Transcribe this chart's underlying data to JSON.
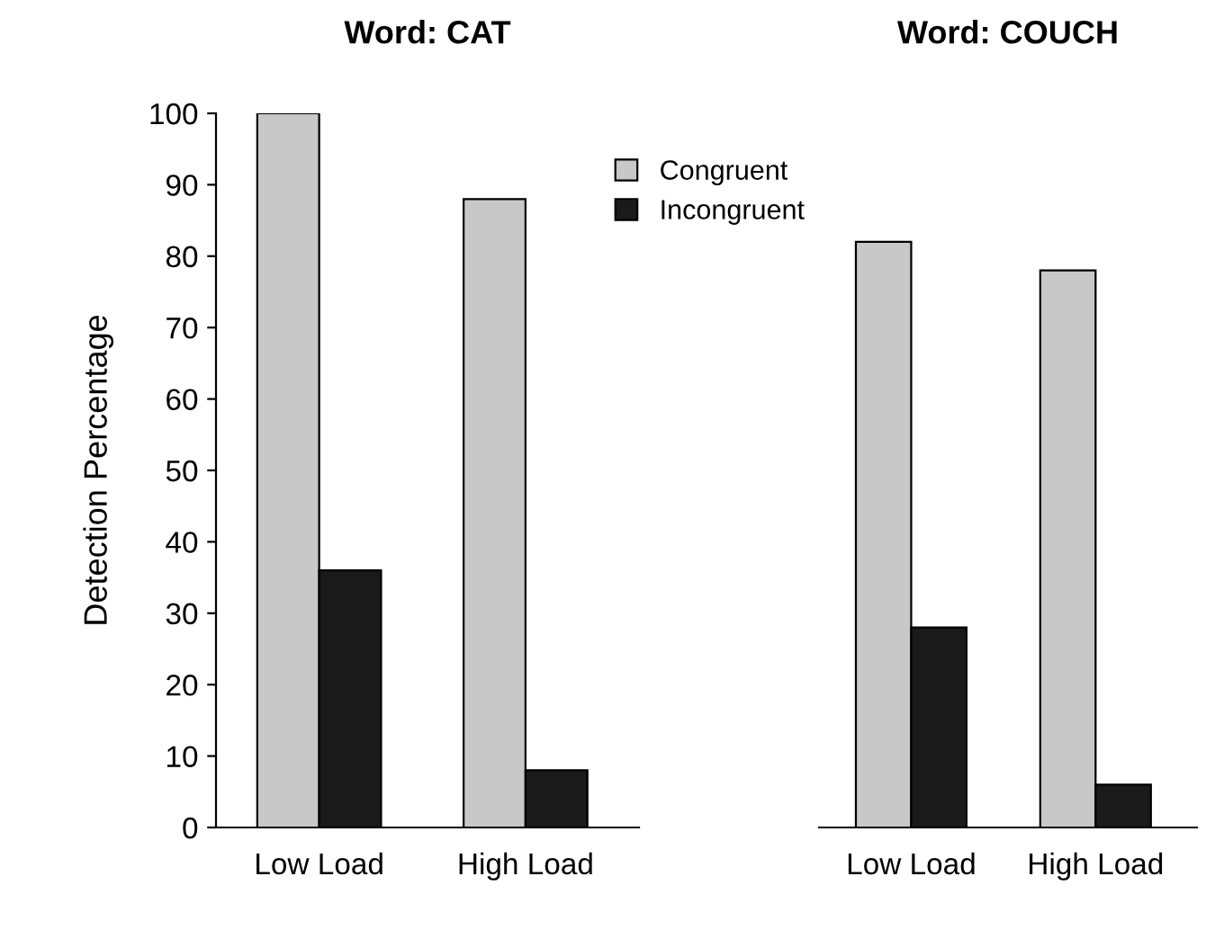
{
  "chart_data": [
    {
      "type": "bar",
      "title": "Word: CAT",
      "ylabel": "Detection Percentage",
      "categories": [
        "Low Load",
        "High Load"
      ],
      "series": [
        {
          "name": "Congruent",
          "color": "#c8c8c8",
          "values": [
            100,
            88
          ]
        },
        {
          "name": "Incongruent",
          "color": "#1a1a1a",
          "values": [
            36,
            8
          ]
        }
      ],
      "ylim": [
        0,
        100
      ],
      "yticks": [
        0,
        10,
        20,
        30,
        40,
        50,
        60,
        70,
        80,
        90,
        100
      ],
      "grid": false,
      "legend": "top right"
    },
    {
      "type": "bar",
      "title": "Word: COUCH",
      "categories": [
        "Low Load",
        "High Load"
      ],
      "series": [
        {
          "color": "#c8c8c8",
          "values": [
            82,
            78
          ]
        },
        {
          "color": "#1a1a1a",
          "values": [
            28,
            6
          ]
        }
      ],
      "ylim": [
        0,
        100
      ],
      "yticks": [
        0,
        10,
        20,
        30,
        40,
        50,
        60,
        70,
        80,
        90,
        100
      ],
      "grid": false,
      "tick_labels": "x"
    }
  ]
}
